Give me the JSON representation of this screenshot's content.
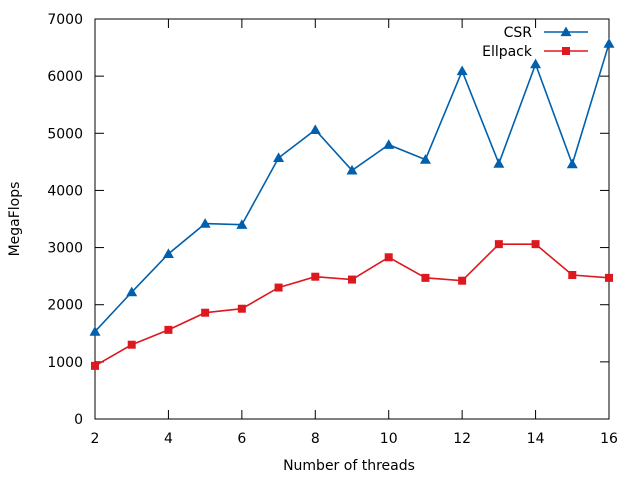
{
  "chart_data": {
    "type": "line",
    "title": "",
    "xlabel": "Number of threads",
    "ylabel": "MegaFlops",
    "x": [
      2,
      3,
      4,
      5,
      6,
      7,
      8,
      9,
      10,
      11,
      12,
      13,
      14,
      15,
      16
    ],
    "xlim": [
      2,
      16
    ],
    "ylim": [
      0,
      7000
    ],
    "xticks": [
      2,
      4,
      6,
      8,
      10,
      12,
      14,
      16
    ],
    "yticks": [
      0,
      1000,
      2000,
      3000,
      4000,
      5000,
      6000,
      7000
    ],
    "grid": false,
    "legend_position": "top-right",
    "series": [
      {
        "name": "CSR",
        "color": "#0060ad",
        "marker": "triangle",
        "values": [
          1530,
          2220,
          2890,
          3420,
          3400,
          4570,
          5060,
          4350,
          4800,
          4540,
          6090,
          4470,
          6210,
          4460,
          6570
        ]
      },
      {
        "name": "Ellpack",
        "color": "#dd181f",
        "marker": "square",
        "values": [
          930,
          1300,
          1560,
          1860,
          1930,
          2300,
          2490,
          2440,
          2830,
          2470,
          2420,
          3060,
          3060,
          2520,
          2470
        ]
      }
    ]
  }
}
